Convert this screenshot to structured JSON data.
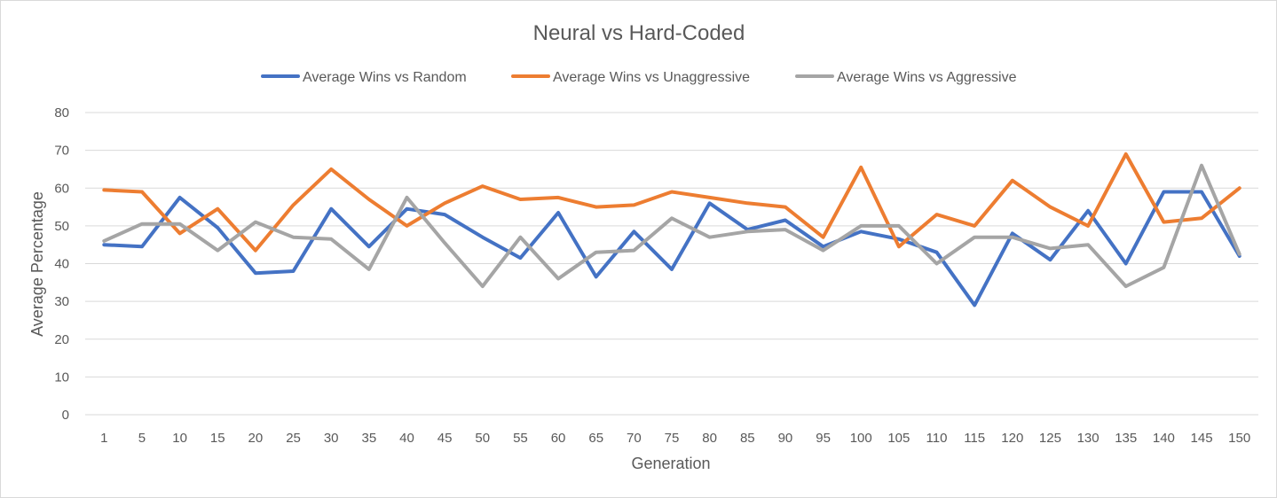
{
  "chart_data": {
    "type": "line",
    "title": "Neural vs Hard-Coded",
    "xlabel": "Generation",
    "ylabel": "Average Percentage",
    "ylim": [
      0,
      80
    ],
    "yticks": [
      0,
      10,
      20,
      30,
      40,
      50,
      60,
      70,
      80
    ],
    "grid": true,
    "legend_position": "top",
    "categories": [
      "1",
      "5",
      "10",
      "15",
      "20",
      "25",
      "30",
      "35",
      "40",
      "45",
      "50",
      "55",
      "60",
      "65",
      "70",
      "75",
      "80",
      "85",
      "90",
      "95",
      "100",
      "105",
      "110",
      "115",
      "120",
      "125",
      "130",
      "135",
      "140",
      "145",
      "150"
    ],
    "series": [
      {
        "name": "Average Wins vs Random",
        "color": "#4472c4",
        "values": [
          45,
          44.5,
          57.5,
          49.5,
          37.5,
          38,
          54.5,
          44.5,
          54.5,
          53,
          47,
          41.5,
          53.5,
          36.5,
          48.5,
          38.5,
          56,
          49,
          51.5,
          44.5,
          48.5,
          46.5,
          43,
          29,
          48,
          41,
          54,
          40,
          59,
          59,
          42
        ]
      },
      {
        "name": "Average Wins vs Unaggressive",
        "color": "#ed7d31",
        "values": [
          59.5,
          59,
          48,
          54.5,
          43.5,
          55.5,
          65,
          57,
          50,
          56,
          60.5,
          57,
          57.5,
          55,
          55.5,
          59,
          57.5,
          56,
          55,
          47,
          65.5,
          44.5,
          53,
          50,
          62,
          55,
          50,
          69,
          51,
          52,
          60
        ]
      },
      {
        "name": "Average Wins vs Aggressive",
        "color": "#a5a5a5",
        "values": [
          46,
          50.5,
          50.5,
          43.5,
          51,
          47,
          46.5,
          38.5,
          57.5,
          45.5,
          34,
          47,
          36,
          43,
          43.5,
          52,
          47,
          48.5,
          49,
          43.5,
          50,
          50,
          40,
          47,
          47,
          44,
          45,
          34,
          39,
          66,
          42.5
        ]
      }
    ]
  }
}
